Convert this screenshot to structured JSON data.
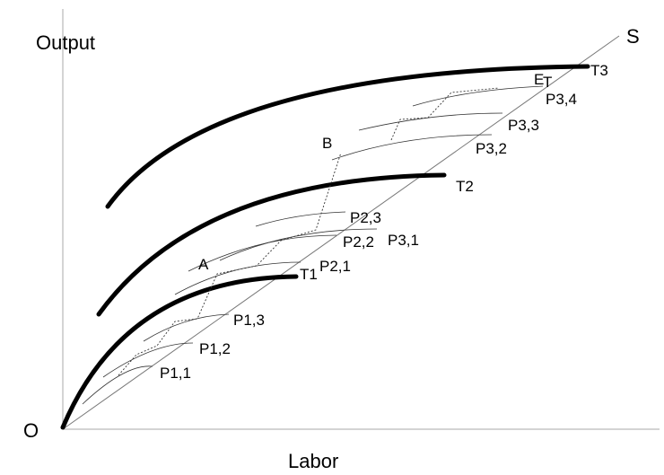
{
  "axes": {
    "y_label": "Output",
    "x_label": "Labor",
    "origin": "O",
    "ray": "S"
  },
  "frontiers": [
    "T1",
    "T2",
    "T3"
  ],
  "points": [
    "A",
    "B",
    "E",
    "T"
  ],
  "curves": [
    "P1,1",
    "P1,2",
    "P1,3",
    "P2,1",
    "P2,2",
    "P2,3",
    "P3,1",
    "P3,2",
    "P3,3",
    "P3,4"
  ]
}
